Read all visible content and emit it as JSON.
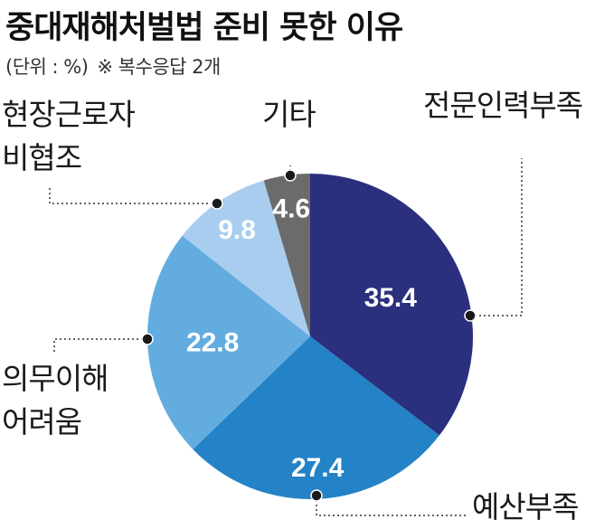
{
  "header": {
    "title": "중대재해처벌법 준비 못한 이유",
    "unit": "(단위 : %)",
    "note": "※ 복수응답 2개"
  },
  "colors": {
    "slice_1": "#2a2f7e",
    "slice_2": "#2482c6",
    "slice_3": "#62ace0",
    "slice_4": "#a8cdef",
    "slice_5": "#6b6b6b",
    "leader": "#333333",
    "value_text": "#ffffff"
  },
  "chart_data": {
    "type": "pie",
    "title": "중대재해처벌법 준비 못한 이유",
    "unit": "%",
    "slices": [
      {
        "label": "전문인력부족",
        "value": 35.4
      },
      {
        "label": "예산부족",
        "value": 27.4
      },
      {
        "label": "의무이해 어려움",
        "value": 22.8
      },
      {
        "label": "현장근로자 비협조",
        "value": 9.8
      },
      {
        "label": "기타",
        "value": 4.6
      }
    ],
    "direction": "clockwise",
    "start": "top"
  }
}
